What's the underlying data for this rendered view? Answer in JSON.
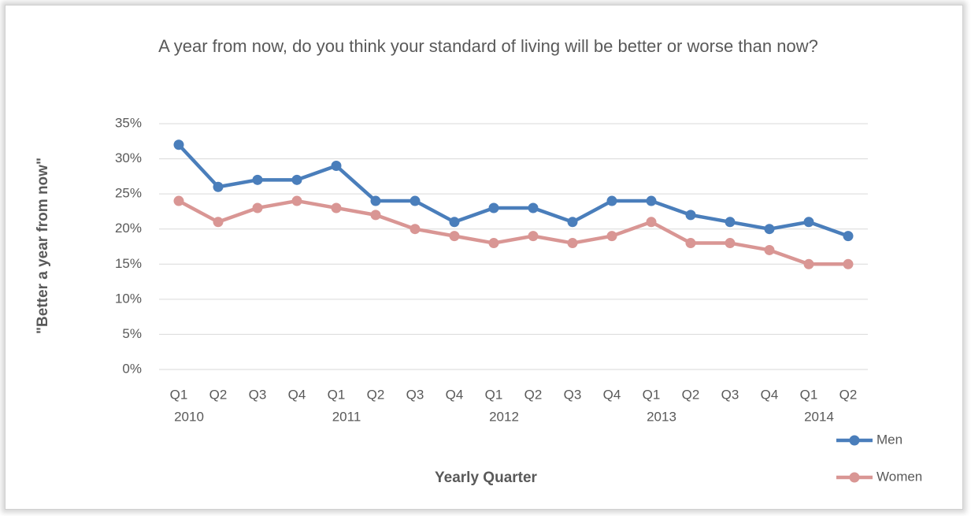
{
  "chart_data": {
    "type": "line",
    "title": "A year from now, do you think your standard of living will be better or worse than now?",
    "y_label": "\"Better a year from now\"",
    "x_label": "Yearly Quarter",
    "categories": [
      "Q1",
      "Q2",
      "Q3",
      "Q4",
      "Q1",
      "Q2",
      "Q3",
      "Q4",
      "Q1",
      "Q2",
      "Q3",
      "Q4",
      "Q1",
      "Q2",
      "Q3",
      "Q4",
      "Q1",
      "Q2"
    ],
    "category_years": [
      "2010",
      null,
      null,
      null,
      "2011",
      null,
      null,
      null,
      "2012",
      null,
      null,
      null,
      "2013",
      null,
      null,
      null,
      "2014",
      null
    ],
    "series": [
      {
        "name": "Men",
        "color": "#4a7ebb",
        "values": [
          32,
          26,
          27,
          27,
          29,
          24,
          24,
          21,
          23,
          23,
          21,
          24,
          24,
          22,
          21,
          20,
          21,
          19
        ]
      },
      {
        "name": "Women",
        "color": "#d99694",
        "values": [
          24,
          21,
          23,
          24,
          23,
          22,
          20,
          19,
          18,
          19,
          18,
          19,
          21,
          18,
          18,
          17,
          15,
          15
        ]
      }
    ],
    "ylim": [
      0,
      35
    ],
    "yticks": [
      {
        "value": 0,
        "label": "0%"
      },
      {
        "value": 5,
        "label": "5%"
      },
      {
        "value": 10,
        "label": "10%"
      },
      {
        "value": 15,
        "label": "15%"
      },
      {
        "value": 20,
        "label": "20%"
      },
      {
        "value": 25,
        "label": "25%"
      },
      {
        "value": 30,
        "label": "30%"
      },
      {
        "value": 35,
        "label": "35%"
      }
    ],
    "grid": true,
    "legend": "right"
  }
}
